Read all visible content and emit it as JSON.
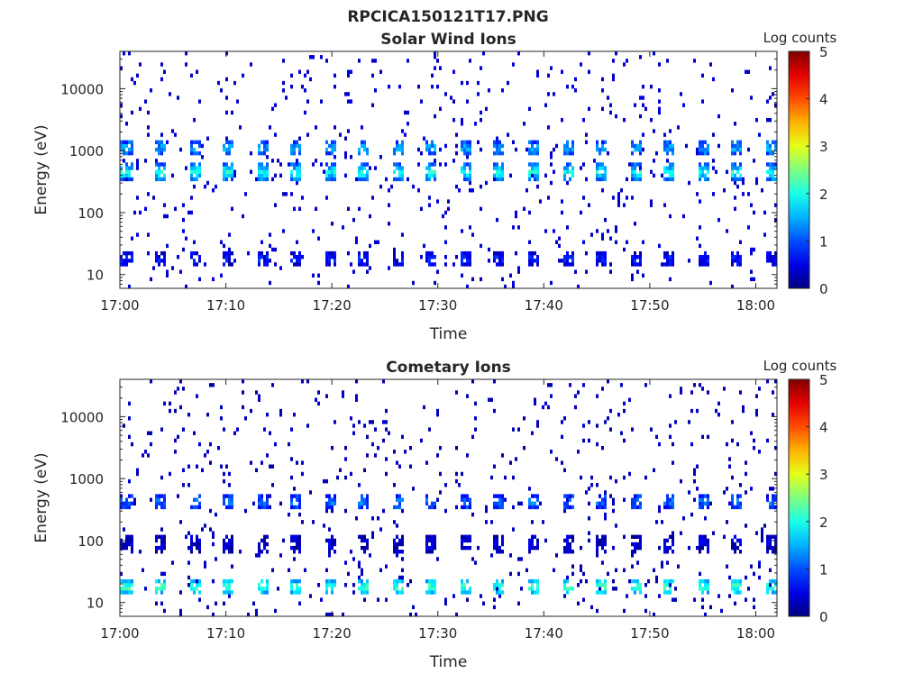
{
  "figure": {
    "suptitle": "RPCICA150121T17.PNG"
  },
  "chart_data": [
    {
      "type": "heatmap",
      "title": "Solar Wind Ions",
      "xlabel": "Time",
      "ylabel": "Energy (eV)",
      "xlim": [
        "17:00",
        "18:02"
      ],
      "ylim": [
        6,
        40000
      ],
      "yscale": "log",
      "xticks": [
        "17:00",
        "17:10",
        "17:20",
        "17:30",
        "17:40",
        "17:50",
        "18:00"
      ],
      "yticks": [
        10,
        100,
        1000,
        10000
      ],
      "colorbar": {
        "label": "Log counts",
        "range": [
          0,
          5
        ],
        "ticks": [
          0,
          1,
          2,
          3,
          4,
          5
        ],
        "colormap": "jet"
      },
      "pattern": {
        "sweep_period_minutes": 3.2,
        "bands": [
          {
            "energy_center_eV": 450,
            "log_counts": 2.0
          },
          {
            "energy_center_eV": 1100,
            "log_counts": 1.5
          },
          {
            "energy_center_eV": 18,
            "log_counts": 0.7
          }
        ],
        "sparse_background_log_counts": 0.3
      }
    },
    {
      "type": "heatmap",
      "title": "Cometary Ions",
      "xlabel": "Time",
      "ylabel": "Energy (eV)",
      "xlim": [
        "17:00",
        "18:02"
      ],
      "ylim": [
        6,
        40000
      ],
      "yscale": "log",
      "xticks": [
        "17:00",
        "17:10",
        "17:20",
        "17:30",
        "17:40",
        "17:50",
        "18:00"
      ],
      "yticks": [
        10,
        100,
        1000,
        10000
      ],
      "colorbar": {
        "label": "Log counts",
        "range": [
          0,
          5
        ],
        "ticks": [
          0,
          1,
          2,
          3,
          4,
          5
        ],
        "colormap": "jet"
      },
      "pattern": {
        "sweep_period_minutes": 3.2,
        "bands": [
          {
            "energy_center_eV": 18,
            "log_counts": 2.3
          },
          {
            "energy_center_eV": 420,
            "log_counts": 1.2
          },
          {
            "energy_center_eV": 90,
            "log_counts": 0.4
          }
        ],
        "sparse_background_log_counts": 0.2
      }
    }
  ]
}
